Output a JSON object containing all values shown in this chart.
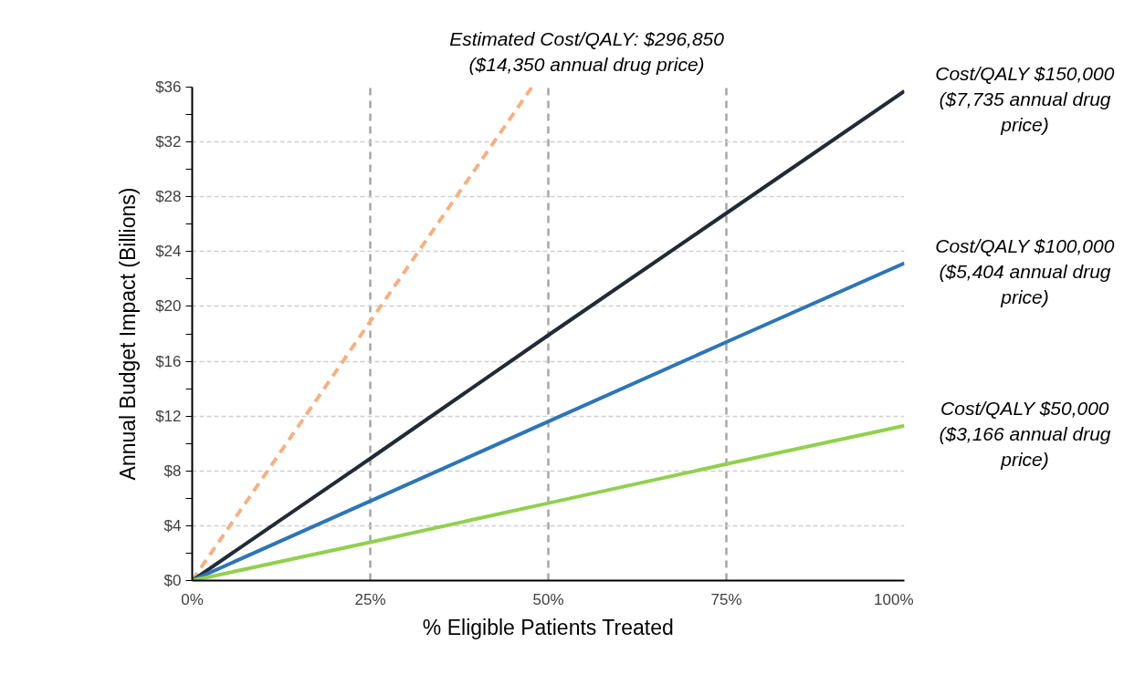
{
  "chart_data": {
    "type": "line",
    "xlabel": "% Eligible Patients Treated",
    "ylabel": "Annual Budget Impact (Billions)",
    "x": [
      0,
      25,
      50,
      75,
      100
    ],
    "series": [
      {
        "name": "Estimated Cost/QALY: $296,850 ($14,350 annual drug price)",
        "color": "#f4b183",
        "line_style": "dashed",
        "x": [
          0,
          25,
          47.7
        ],
        "values": [
          0,
          18.9,
          36
        ]
      },
      {
        "name": "Cost/QALY $150,000 ($7,735 annual drug price)",
        "color": "#222a35",
        "values": [
          0,
          8.9,
          17.9,
          26.8,
          35.7
        ]
      },
      {
        "name": "Cost/QALY $100,000 ($5,404 annual drug price)",
        "color": "#2e75b6",
        "values": [
          0,
          5.8,
          11.6,
          17.4,
          23.15
        ]
      },
      {
        "name": "Cost/QALY $50,000 ($3,166 annual drug price)",
        "color": "#92d050",
        "values": [
          0,
          2.8,
          5.65,
          8.5,
          11.3
        ]
      }
    ],
    "xlim": [
      0,
      100
    ],
    "ylim": [
      0,
      36
    ],
    "xticks": [
      {
        "value": 0,
        "label": "0%"
      },
      {
        "value": 25,
        "label": "25%"
      },
      {
        "value": 50,
        "label": "50%"
      },
      {
        "value": 75,
        "label": "75%"
      },
      {
        "value": 100,
        "label": "100%"
      }
    ],
    "yticks": [
      {
        "value": 0,
        "label": "$0"
      },
      {
        "value": 4,
        "label": "$4"
      },
      {
        "value": 8,
        "label": "$8"
      },
      {
        "value": 12,
        "label": "$12"
      },
      {
        "value": 16,
        "label": "$16"
      },
      {
        "value": 20,
        "label": "$20"
      },
      {
        "value": 24,
        "label": "$24"
      },
      {
        "value": 28,
        "label": "$28"
      },
      {
        "value": 32,
        "label": "$32"
      },
      {
        "value": 36,
        "label": "$36"
      }
    ],
    "grid": true,
    "marker": "none",
    "line_style": "solid"
  }
}
